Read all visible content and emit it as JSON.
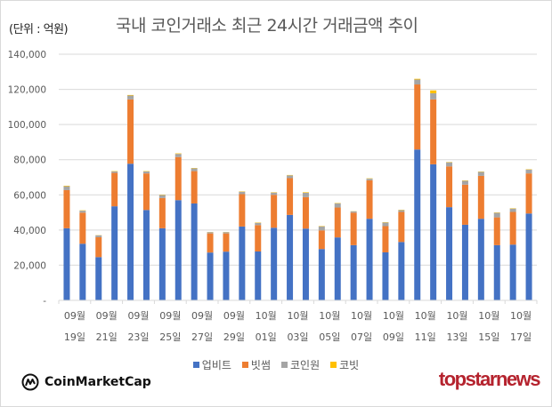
{
  "header": {
    "unit_label": "(단위 : 억원)",
    "title": "국내 코인거래소 최근 24시간 거래금액 추이"
  },
  "colors": {
    "upbit": "#4472c4",
    "bithumb": "#ed7d31",
    "coinone": "#a5a5a5",
    "korbit": "#ffc000",
    "grid": "#d9d9d9",
    "tick_text": "#595959"
  },
  "chart_data": {
    "type": "bar",
    "stacked": true,
    "title": "국내 코인거래소 최근 24시간 거래금액 추이",
    "ylabel": "(단위 : 억원)",
    "xlabel": "",
    "ylim": [
      0,
      140000
    ],
    "yticks": [
      0,
      20000,
      40000,
      60000,
      80000,
      100000,
      120000,
      140000
    ],
    "ytick_labels": [
      "-",
      "20,000",
      "40,000",
      "60,000",
      "80,000",
      "100,000",
      "120,000",
      "140,000"
    ],
    "grid": true,
    "legend_position": "bottom",
    "categories": [
      "09-19",
      "09-20",
      "09-21",
      "09-22",
      "09-23",
      "09-24",
      "09-25",
      "09-26",
      "09-27",
      "09-28",
      "09-29",
      "09-30",
      "10-01",
      "10-02",
      "10-03",
      "10-04",
      "10-05",
      "10-06",
      "10-07",
      "10-08",
      "10-09",
      "10-10",
      "10-11",
      "10-12",
      "10-13",
      "10-14",
      "10-15",
      "10-16",
      "10-17",
      "10-18"
    ],
    "xtick_labels": [
      {
        "month": "09월",
        "day": "19일"
      },
      {
        "month": "09월",
        "day": "21일"
      },
      {
        "month": "09월",
        "day": "23일"
      },
      {
        "month": "09월",
        "day": "25일"
      },
      {
        "month": "09월",
        "day": "27일"
      },
      {
        "month": "09월",
        "day": "29일"
      },
      {
        "month": "10월",
        "day": "01일"
      },
      {
        "month": "10월",
        "day": "03일"
      },
      {
        "month": "10월",
        "day": "05일"
      },
      {
        "month": "10월",
        "day": "07일"
      },
      {
        "month": "10월",
        "day": "09일"
      },
      {
        "month": "10월",
        "day": "11일"
      },
      {
        "month": "10월",
        "day": "13일"
      },
      {
        "month": "10월",
        "day": "15일"
      },
      {
        "month": "10월",
        "day": "17일"
      }
    ],
    "series": [
      {
        "name": "업비트",
        "key": "upbit",
        "values": [
          41000,
          32200,
          24600,
          53500,
          77700,
          51400,
          41000,
          57000,
          55100,
          27200,
          27700,
          42000,
          27800,
          41300,
          48600,
          40800,
          29200,
          35800,
          31400,
          46400,
          27300,
          33200,
          85800,
          77400,
          53000,
          43000,
          46400,
          31400,
          31700,
          49400
        ]
      },
      {
        "name": "빗썸",
        "key": "bithumb",
        "values": [
          21700,
          17700,
          11300,
          19000,
          36600,
          20800,
          17200,
          24500,
          18400,
          10900,
          10400,
          18400,
          15000,
          18700,
          20900,
          17900,
          10600,
          17000,
          18500,
          21900,
          14900,
          17100,
          37000,
          36900,
          23200,
          22800,
          24400,
          15800,
          18600,
          22800
        ]
      },
      {
        "name": "코인원",
        "key": "coinone",
        "values": [
          2200,
          1100,
          1100,
          800,
          2200,
          1100,
          1700,
          1800,
          1600,
          700,
          700,
          1400,
          1300,
          1300,
          1600,
          2500,
          2300,
          2400,
          700,
          900,
          2100,
          1000,
          2800,
          3500,
          2300,
          2200,
          2300,
          2600,
          1900,
          2200
        ]
      },
      {
        "name": "코빗",
        "key": "korbit",
        "values": [
          300,
          200,
          100,
          200,
          300,
          200,
          200,
          300,
          200,
          100,
          100,
          200,
          200,
          200,
          200,
          300,
          200,
          200,
          100,
          200,
          200,
          200,
          400,
          1600,
          200,
          200,
          200,
          200,
          200,
          200
        ]
      }
    ]
  },
  "legend": {
    "items": [
      {
        "label": "업비트",
        "key": "upbit"
      },
      {
        "label": "빗썸",
        "key": "bithumb"
      },
      {
        "label": "코인원",
        "key": "coinone"
      },
      {
        "label": "코빗",
        "key": "korbit"
      }
    ]
  },
  "footer": {
    "source_logo_text": "CoinMarketCap",
    "publisher_logo_text": "topstarnews"
  }
}
